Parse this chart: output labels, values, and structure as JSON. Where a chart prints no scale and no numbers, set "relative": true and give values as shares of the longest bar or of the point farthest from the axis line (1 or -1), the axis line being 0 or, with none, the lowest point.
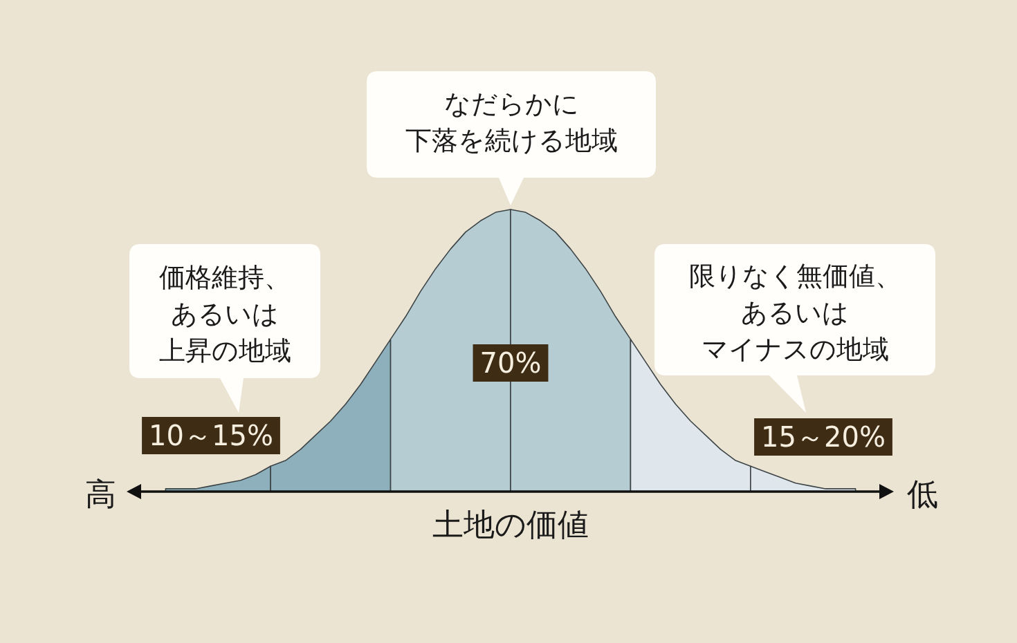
{
  "chart_data": {
    "type": "area",
    "relative": true,
    "xlabel": "土地の価値",
    "categories": [
      null,
      null,
      null,
      null,
      null,
      null,
      null,
      null,
      null,
      null,
      null,
      null,
      null,
      null,
      null,
      null,
      null,
      null,
      null,
      null,
      null,
      null,
      null,
      null,
      null,
      null,
      null,
      null,
      null,
      null,
      null,
      null,
      null,
      null,
      null,
      null,
      null,
      null,
      null,
      null,
      null,
      null,
      null,
      null,
      null,
      null,
      null,
      null,
      null,
      null,
      null
    ],
    "series": [
      {
        "color": "#8db0bc",
        "values": [
          null,
          null,
          0.01,
          0.01,
          0.01,
          0.02,
          0.03,
          0.04,
          0.06,
          0.09,
          null,
          null,
          null,
          null,
          null,
          null,
          null,
          null,
          null,
          null,
          null,
          null,
          null,
          null,
          null,
          null,
          null,
          null,
          null,
          null,
          null,
          null,
          null,
          null,
          null,
          null,
          null,
          null,
          null,
          null,
          null,
          null,
          null,
          null,
          null,
          null,
          null,
          null,
          null,
          null,
          null
        ]
      },
      {
        "color": "#8db0bc",
        "values": [
          null,
          null,
          null,
          null,
          null,
          null,
          null,
          null,
          null,
          0.09,
          0.11,
          0.15,
          0.2,
          0.25,
          0.31,
          0.38,
          0.46,
          0.54,
          null,
          null,
          null,
          null,
          null,
          null,
          null,
          null,
          null,
          null,
          null,
          null,
          null,
          null,
          null,
          null,
          null,
          null,
          null,
          null,
          null,
          null,
          null,
          null,
          null,
          null,
          null,
          null,
          null,
          null,
          null,
          null,
          null
        ]
      },
      {
        "color": "#b5ccd3",
        "values": [
          null,
          null,
          null,
          null,
          null,
          null,
          null,
          null,
          null,
          null,
          null,
          null,
          null,
          null,
          null,
          null,
          null,
          0.54,
          0.62,
          0.71,
          0.79,
          0.86,
          0.92,
          0.96,
          0.99,
          1,
          null,
          null,
          null,
          null,
          null,
          null,
          null,
          null,
          null,
          null,
          null,
          null,
          null,
          null,
          null,
          null,
          null,
          null,
          null,
          null,
          null,
          null,
          null,
          null,
          null
        ]
      },
      {
        "color": "#b5ccd3",
        "values": [
          null,
          null,
          null,
          null,
          null,
          null,
          null,
          null,
          null,
          null,
          null,
          null,
          null,
          null,
          null,
          null,
          null,
          null,
          null,
          null,
          null,
          null,
          null,
          null,
          null,
          1,
          0.99,
          0.96,
          0.92,
          0.86,
          0.79,
          0.71,
          0.62,
          0.54,
          null,
          null,
          null,
          null,
          null,
          null,
          null,
          null,
          null,
          null,
          null,
          null,
          null,
          null,
          null,
          null,
          null
        ]
      },
      {
        "color": "#dfe7ec",
        "values": [
          null,
          null,
          null,
          null,
          null,
          null,
          null,
          null,
          null,
          null,
          null,
          null,
          null,
          null,
          null,
          null,
          null,
          null,
          null,
          null,
          null,
          null,
          null,
          null,
          null,
          null,
          null,
          null,
          null,
          null,
          null,
          null,
          null,
          0.54,
          0.46,
          0.38,
          0.31,
          0.25,
          0.2,
          0.15,
          0.11,
          0.09,
          null,
          null,
          null,
          null,
          null,
          null,
          null,
          null,
          null
        ]
      },
      {
        "color": "#dfe7ec",
        "values": [
          null,
          null,
          null,
          null,
          null,
          null,
          null,
          null,
          null,
          null,
          null,
          null,
          null,
          null,
          null,
          null,
          null,
          null,
          null,
          null,
          null,
          null,
          null,
          null,
          null,
          null,
          null,
          null,
          null,
          null,
          null,
          null,
          null,
          null,
          null,
          null,
          null,
          null,
          null,
          null,
          null,
          0.09,
          0.07,
          0.05,
          0.03,
          0.02,
          0.01,
          0.01,
          0.01,
          null,
          null
        ]
      }
    ],
    "annotations": [
      "価格維持、あるいは上昇の地域",
      "なだらかに下落を続ける地域",
      "限りなく無価値、あるいはマイナスの地域",
      "10～15%",
      "70%",
      "15～20%",
      "高",
      "低"
    ]
  }
}
